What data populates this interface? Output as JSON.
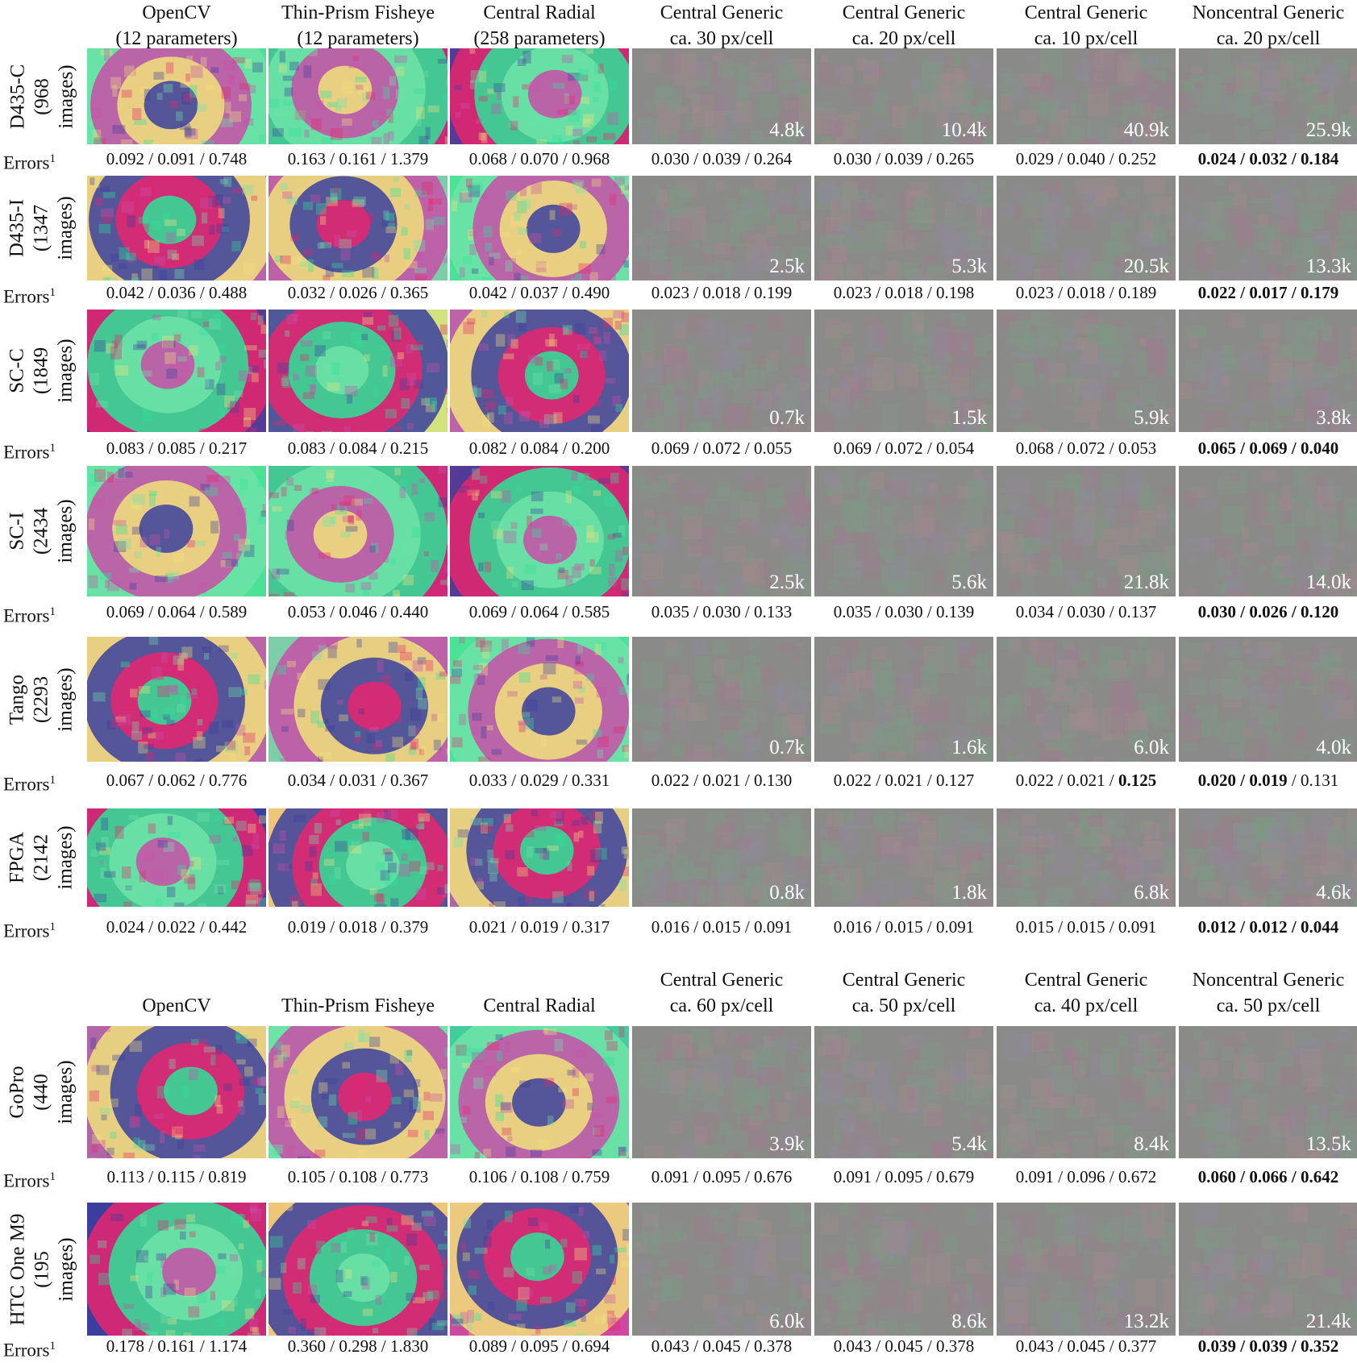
{
  "sections": [
    {
      "headers": [
        [
          "OpenCV",
          "(12 parameters)"
        ],
        [
          "Thin-Prism Fisheye",
          "(12 parameters)"
        ],
        [
          "Central Radial",
          "(258 parameters)"
        ],
        [
          "Central Generic",
          "ca. 30 px/cell"
        ],
        [
          "Central Generic",
          "ca. 20 px/cell"
        ],
        [
          "Central Generic",
          "ca. 10 px/cell"
        ],
        [
          "Noncentral Generic",
          "ca. 20 px/cell"
        ]
      ],
      "rows": [
        {
          "label": [
            "D435-C",
            "(968",
            "images)"
          ],
          "counts": [
            "4.8k",
            "10.4k",
            "40.9k",
            "25.9k"
          ],
          "errors": [
            [
              "0.092",
              "0.091",
              "0.748"
            ],
            [
              "0.163",
              "0.161",
              "1.379"
            ],
            [
              "0.068",
              "0.070",
              "0.968"
            ],
            [
              "0.030",
              "0.039",
              "0.264"
            ],
            [
              "0.030",
              "0.039",
              "0.265"
            ],
            [
              "0.029",
              "0.040",
              "0.252"
            ],
            [
              "0.024",
              "0.032",
              "0.184"
            ]
          ],
          "bold": [
            [
              0,
              0,
              0
            ],
            [
              0,
              0,
              0
            ],
            [
              0,
              0,
              0
            ],
            [
              0,
              0,
              0
            ],
            [
              0,
              0,
              0
            ],
            [
              0,
              0,
              0
            ],
            [
              1,
              1,
              1
            ]
          ]
        },
        {
          "label": [
            "D435-I",
            "(1347",
            "images)"
          ],
          "counts": [
            "2.5k",
            "5.3k",
            "20.5k",
            "13.3k"
          ],
          "errors": [
            [
              "0.042",
              "0.036",
              "0.488"
            ],
            [
              "0.032",
              "0.026",
              "0.365"
            ],
            [
              "0.042",
              "0.037",
              "0.490"
            ],
            [
              "0.023",
              "0.018",
              "0.199"
            ],
            [
              "0.023",
              "0.018",
              "0.198"
            ],
            [
              "0.023",
              "0.018",
              "0.189"
            ],
            [
              "0.022",
              "0.017",
              "0.179"
            ]
          ],
          "bold": [
            [
              0,
              0,
              0
            ],
            [
              0,
              0,
              0
            ],
            [
              0,
              0,
              0
            ],
            [
              0,
              0,
              0
            ],
            [
              0,
              0,
              0
            ],
            [
              0,
              0,
              0
            ],
            [
              1,
              1,
              1
            ]
          ]
        },
        {
          "label": [
            "SC-C",
            "(1849",
            "images)"
          ],
          "counts": [
            "0.7k",
            "1.5k",
            "5.9k",
            "3.8k"
          ],
          "errors": [
            [
              "0.083",
              "0.085",
              "0.217"
            ],
            [
              "0.083",
              "0.084",
              "0.215"
            ],
            [
              "0.082",
              "0.084",
              "0.200"
            ],
            [
              "0.069",
              "0.072",
              "0.055"
            ],
            [
              "0.069",
              "0.072",
              "0.054"
            ],
            [
              "0.068",
              "0.072",
              "0.053"
            ],
            [
              "0.065",
              "0.069",
              "0.040"
            ]
          ],
          "bold": [
            [
              0,
              0,
              0
            ],
            [
              0,
              0,
              0
            ],
            [
              0,
              0,
              0
            ],
            [
              0,
              0,
              0
            ],
            [
              0,
              0,
              0
            ],
            [
              0,
              0,
              0
            ],
            [
              1,
              1,
              1
            ]
          ]
        },
        {
          "label": [
            "SC-I",
            "(2434",
            "images)"
          ],
          "counts": [
            "2.5k",
            "5.6k",
            "21.8k",
            "14.0k"
          ],
          "errors": [
            [
              "0.069",
              "0.064",
              "0.589"
            ],
            [
              "0.053",
              "0.046",
              "0.440"
            ],
            [
              "0.069",
              "0.064",
              "0.585"
            ],
            [
              "0.035",
              "0.030",
              "0.133"
            ],
            [
              "0.035",
              "0.030",
              "0.139"
            ],
            [
              "0.034",
              "0.030",
              "0.137"
            ],
            [
              "0.030",
              "0.026",
              "0.120"
            ]
          ],
          "bold": [
            [
              0,
              0,
              0
            ],
            [
              0,
              0,
              0
            ],
            [
              0,
              0,
              0
            ],
            [
              0,
              0,
              0
            ],
            [
              0,
              0,
              0
            ],
            [
              0,
              0,
              0
            ],
            [
              1,
              1,
              1
            ]
          ]
        },
        {
          "label": [
            "Tango",
            "(2293",
            "images)"
          ],
          "counts": [
            "0.7k",
            "1.6k",
            "6.0k",
            "4.0k"
          ],
          "errors": [
            [
              "0.067",
              "0.062",
              "0.776"
            ],
            [
              "0.034",
              "0.031",
              "0.367"
            ],
            [
              "0.033",
              "0.029",
              "0.331"
            ],
            [
              "0.022",
              "0.021",
              "0.130"
            ],
            [
              "0.022",
              "0.021",
              "0.127"
            ],
            [
              "0.022",
              "0.021",
              "0.125"
            ],
            [
              "0.020",
              "0.019",
              "0.131"
            ]
          ],
          "bold": [
            [
              0,
              0,
              0
            ],
            [
              0,
              0,
              0
            ],
            [
              0,
              0,
              0
            ],
            [
              0,
              0,
              0
            ],
            [
              0,
              0,
              0
            ],
            [
              0,
              0,
              1
            ],
            [
              1,
              1,
              0
            ]
          ]
        },
        {
          "label": [
            "FPGA",
            "(2142",
            "images)"
          ],
          "counts": [
            "0.8k",
            "1.8k",
            "6.8k",
            "4.6k"
          ],
          "errors": [
            [
              "0.024",
              "0.022",
              "0.442"
            ],
            [
              "0.019",
              "0.018",
              "0.379"
            ],
            [
              "0.021",
              "0.019",
              "0.317"
            ],
            [
              "0.016",
              "0.015",
              "0.091"
            ],
            [
              "0.016",
              "0.015",
              "0.091"
            ],
            [
              "0.015",
              "0.015",
              "0.091"
            ],
            [
              "0.012",
              "0.012",
              "0.044"
            ]
          ],
          "bold": [
            [
              0,
              0,
              0
            ],
            [
              0,
              0,
              0
            ],
            [
              0,
              0,
              0
            ],
            [
              0,
              0,
              0
            ],
            [
              0,
              0,
              0
            ],
            [
              0,
              0,
              0
            ],
            [
              1,
              1,
              1
            ]
          ]
        }
      ]
    },
    {
      "headers": [
        [
          "OpenCV"
        ],
        [
          "Thin-Prism Fisheye"
        ],
        [
          "Central Radial"
        ],
        [
          "Central Generic",
          "ca. 60 px/cell"
        ],
        [
          "Central Generic",
          "ca. 50 px/cell"
        ],
        [
          "Central Generic",
          "ca. 40 px/cell"
        ],
        [
          "Noncentral Generic",
          "ca. 50 px/cell"
        ]
      ],
      "rows": [
        {
          "label": [
            "GoPro",
            "(440",
            "images)"
          ],
          "counts": [
            "3.9k",
            "5.4k",
            "8.4k",
            "13.5k"
          ],
          "errors": [
            [
              "0.113",
              "0.115",
              "0.819"
            ],
            [
              "0.105",
              "0.108",
              "0.773"
            ],
            [
              "0.106",
              "0.108",
              "0.759"
            ],
            [
              "0.091",
              "0.095",
              "0.676"
            ],
            [
              "0.091",
              "0.095",
              "0.679"
            ],
            [
              "0.091",
              "0.096",
              "0.672"
            ],
            [
              "0.060",
              "0.066",
              "0.642"
            ]
          ],
          "bold": [
            [
              0,
              0,
              0
            ],
            [
              0,
              0,
              0
            ],
            [
              0,
              0,
              0
            ],
            [
              0,
              0,
              0
            ],
            [
              0,
              0,
              0
            ],
            [
              0,
              0,
              0
            ],
            [
              1,
              1,
              1
            ]
          ]
        },
        {
          "label": [
            "HTC One M9",
            "(195",
            "images)"
          ],
          "counts": [
            "6.0k",
            "8.6k",
            "13.2k",
            "21.4k"
          ],
          "errors": [
            [
              "0.178",
              "0.161",
              "1.174"
            ],
            [
              "0.360",
              "0.298",
              "1.830"
            ],
            [
              "0.089",
              "0.095",
              "0.694"
            ],
            [
              "0.043",
              "0.045",
              "0.378"
            ],
            [
              "0.043",
              "0.045",
              "0.378"
            ],
            [
              "0.043",
              "0.045",
              "0.377"
            ],
            [
              "0.039",
              "0.039",
              "0.352"
            ]
          ],
          "bold": [
            [
              0,
              0,
              0
            ],
            [
              0,
              0,
              0
            ],
            [
              0,
              0,
              0
            ],
            [
              0,
              0,
              0
            ],
            [
              0,
              0,
              0
            ],
            [
              0,
              0,
              0
            ],
            [
              1,
              1,
              1
            ]
          ]
        }
      ]
    }
  ],
  "errors_label": "Errors",
  "errors_sup": "1",
  "error_separator": " / ",
  "palette": [
    "#2de39a",
    "#e8266e",
    "#3b3f9e",
    "#f0e27a",
    "#c94fa8",
    "#6fe3a8"
  ],
  "noise_tint": "#8a8a88"
}
